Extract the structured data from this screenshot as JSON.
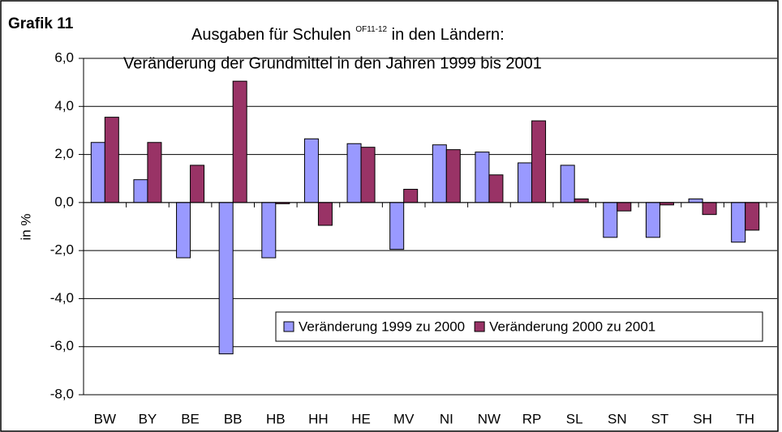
{
  "chart_data": {
    "type": "bar",
    "label": "Grafik 11",
    "title": "Ausgaben für Schulen",
    "title_superscript": "OF11-12",
    "title_suffix": "in den Ländern:",
    "subtitle": "Veränderung der Grundmittel in den Jahren 1999 bis 2001",
    "y_label": "in %",
    "categories": [
      "BW",
      "BY",
      "BE",
      "BB",
      "HB",
      "HH",
      "HE",
      "MV",
      "NI",
      "NW",
      "RP",
      "SL",
      "SN",
      "ST",
      "SH",
      "TH"
    ],
    "series": [
      {
        "name": "Veränderung 1999 zu 2000",
        "color": "#9999ff",
        "values": [
          2.5,
          0.95,
          -2.3,
          -6.3,
          -2.3,
          2.65,
          2.45,
          -1.95,
          2.4,
          2.1,
          1.65,
          1.55,
          -1.45,
          -1.45,
          0.15,
          -1.65
        ]
      },
      {
        "name": "Veränderung 2000 zu 2001",
        "color": "#993366",
        "values": [
          3.55,
          2.5,
          1.55,
          5.05,
          -0.05,
          -0.95,
          2.3,
          0.55,
          2.2,
          1.15,
          3.4,
          0.15,
          -0.35,
          -0.1,
          -0.5,
          -1.15
        ]
      }
    ],
    "ylim": [
      -8,
      6
    ],
    "yticks": [
      {
        "value": -8,
        "label": "-8,0"
      },
      {
        "value": -6,
        "label": "-6,0"
      },
      {
        "value": -4,
        "label": "-4,0"
      },
      {
        "value": -2,
        "label": "-2,0"
      },
      {
        "value": 0,
        "label": "0,0"
      },
      {
        "value": 2,
        "label": "2,0"
      },
      {
        "value": 4,
        "label": "4,0"
      },
      {
        "value": 6,
        "label": "6,0"
      }
    ],
    "grid": true,
    "legend": "bottom-right"
  }
}
